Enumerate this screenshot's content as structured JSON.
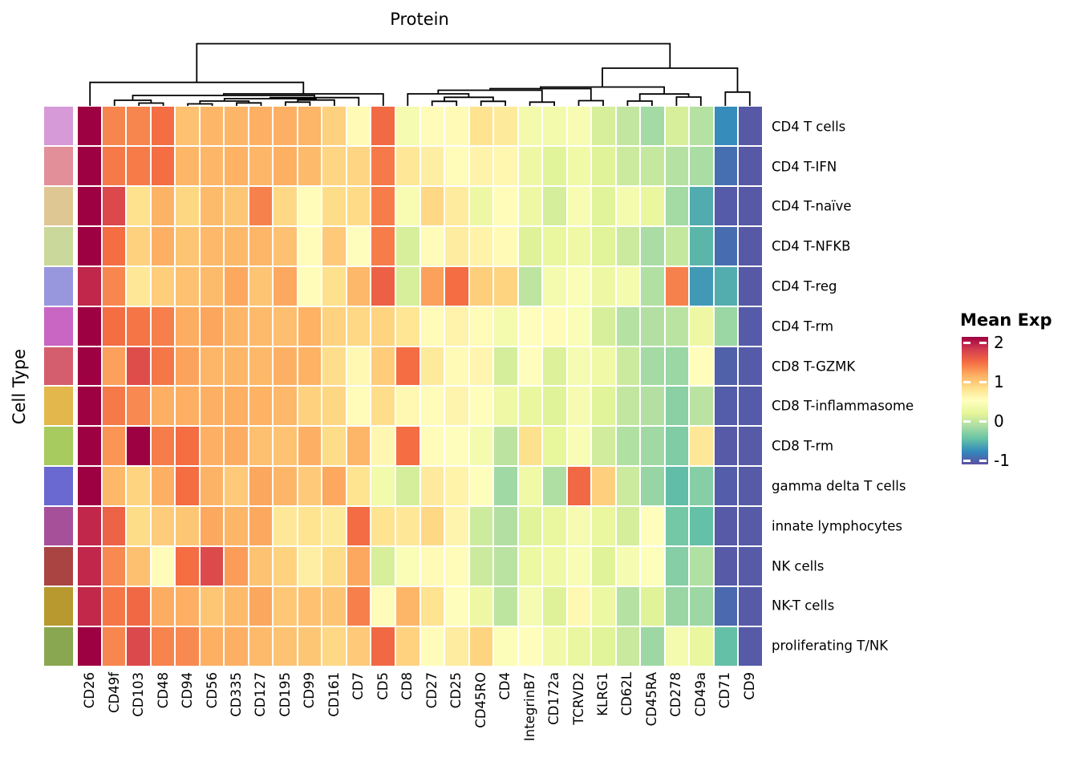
{
  "title": "Protein",
  "ylabel": "Cell Type",
  "legend": {
    "title": "Mean Exp",
    "vmin": -1.1,
    "vmax": 2.15,
    "ticks": [
      {
        "value": 2,
        "label": "2"
      },
      {
        "value": 1,
        "label": "1"
      },
      {
        "value": 0,
        "label": "0"
      },
      {
        "value": -1,
        "label": "-1"
      }
    ],
    "colormap": [
      [
        0.0,
        "#5e4fa2"
      ],
      [
        0.1,
        "#3288bd"
      ],
      [
        0.2,
        "#66c2a5"
      ],
      [
        0.3,
        "#abdda4"
      ],
      [
        0.4,
        "#e6f598"
      ],
      [
        0.5,
        "#ffffbf"
      ],
      [
        0.6,
        "#fee08b"
      ],
      [
        0.7,
        "#fdae61"
      ],
      [
        0.8,
        "#f46d43"
      ],
      [
        0.9,
        "#d53e4f"
      ],
      [
        1.0,
        "#9e0142"
      ]
    ]
  },
  "chart_data": {
    "type": "heatmap",
    "columns": [
      "CD26",
      "CD49f",
      "CD103",
      "CD48",
      "CD94",
      "CD56",
      "CD335",
      "CD127",
      "CD195",
      "CD99",
      "CD161",
      "CD7",
      "CD5",
      "CD8",
      "CD27",
      "CD25",
      "CD45RO",
      "CD4",
      "IntegrinB7",
      "CD172a",
      "TCRVD2",
      "KLRG1",
      "CD62L",
      "CD45RA",
      "CD278",
      "CD49a",
      "CD71",
      "CD9"
    ],
    "rows": [
      "CD4 T cells",
      "CD4 T-IFN",
      "CD4 T-naïve",
      "CD4 T-NFKB",
      "CD4 T-reg",
      "CD4 T-rm",
      "CD8 T-GZMK",
      "CD8 T-inflammasome",
      "CD8 T-rm",
      "gamma delta T cells",
      "innate lymphocytes",
      "NK cells",
      "NK-T cells",
      "proliferating T/NK"
    ],
    "row_colors": [
      "#d69ad8",
      "#e28f99",
      "#dfc794",
      "#cbd89b",
      "#9897dd",
      "#c965c3",
      "#d45e6e",
      "#e3b74b",
      "#a7cb5e",
      "#6969d1",
      "#a7509a",
      "#a94443",
      "#b7992f",
      "#89a750"
    ],
    "matrix": [
      [
        2.15,
        1.38,
        1.38,
        1.5,
        1.05,
        1.12,
        1.12,
        1.16,
        1.16,
        1.13,
        0.95,
        0.58,
        1.52,
        0.4,
        0.57,
        0.58,
        0.82,
        0.75,
        0.37,
        0.37,
        0.42,
        0.12,
        0,
        -0.16,
        0.12,
        -0.07,
        -0.75,
        -1.05
      ],
      [
        2.15,
        1.44,
        1.43,
        1.5,
        1.12,
        1.12,
        1.15,
        1.12,
        1.17,
        1.1,
        0.92,
        0.92,
        1.44,
        0.78,
        0.7,
        0.57,
        0.65,
        0.62,
        0.3,
        0.18,
        0.32,
        0.17,
        0.05,
        0.02,
        -0.07,
        -0.13,
        -0.92,
        -1.05
      ],
      [
        2.15,
        1.75,
        0.83,
        1.14,
        0.91,
        1.1,
        1.02,
        1.4,
        0.9,
        0.57,
        0.87,
        0.88,
        1.42,
        0.42,
        0.9,
        0.73,
        0.3,
        0.56,
        0.3,
        0.1,
        0.42,
        0.18,
        0.38,
        0.25,
        -0.16,
        -0.58,
        -1.03,
        -1.05
      ],
      [
        2.15,
        1.5,
        0.95,
        1.16,
        1.03,
        1.11,
        1.11,
        1.13,
        1.05,
        0.56,
        1.0,
        0.55,
        1.42,
        0.12,
        0.57,
        0.72,
        0.66,
        0.58,
        0.16,
        0.25,
        0.31,
        0.18,
        0.05,
        -0.13,
        0.02,
        -0.52,
        -0.93,
        -1.05
      ],
      [
        1.95,
        1.37,
        0.77,
        0.97,
        1.05,
        1.1,
        1.2,
        1.03,
        1.2,
        0.56,
        0.84,
        1.11,
        1.58,
        0.12,
        1.24,
        1.5,
        0.97,
        0.93,
        -0.02,
        0.38,
        0.45,
        0.3,
        0.38,
        -0.09,
        1.4,
        -0.68,
        -0.57,
        -1.05
      ],
      [
        2.15,
        1.5,
        1.46,
        1.41,
        1.18,
        1.22,
        1.12,
        1.1,
        1.07,
        1.15,
        0.94,
        0.9,
        0.93,
        0.79,
        0.57,
        0.65,
        0.57,
        0.38,
        0.55,
        0.56,
        0.45,
        0.12,
        -0.07,
        -0.08,
        -0.04,
        0.3,
        -0.2,
        -1.03
      ],
      [
        2.15,
        1.24,
        1.72,
        1.45,
        1.23,
        1.13,
        1.13,
        1.11,
        1.16,
        1.15,
        0.86,
        0.6,
        0.98,
        1.5,
        0.75,
        0.58,
        0.63,
        0.1,
        0.55,
        0.15,
        0.4,
        0.32,
        0.05,
        -0.16,
        -0.2,
        0.55,
        -1.0,
        -1.03
      ],
      [
        2.15,
        1.44,
        1.36,
        1.16,
        1.16,
        1.16,
        1.17,
        1.15,
        1.11,
        0.95,
        0.91,
        0.57,
        0.86,
        0.6,
        0.57,
        0.64,
        0.55,
        0.31,
        0.25,
        0.17,
        0.41,
        0.18,
        0,
        -0.08,
        -0.28,
        -0.04,
        -1.02,
        -1.03
      ],
      [
        2.15,
        1.3,
        2.2,
        1.42,
        1.5,
        1.16,
        1.18,
        1.06,
        1.04,
        1.16,
        0.87,
        1.13,
        0.61,
        1.5,
        0.56,
        0.55,
        0.38,
        -0.03,
        0.84,
        0.23,
        0.44,
        0.08,
        -0.09,
        -0.17,
        -0.33,
        0.78,
        -1.04,
        -1.04
      ],
      [
        2.15,
        1.11,
        0.93,
        1.16,
        1.5,
        1.14,
        1.0,
        1.21,
        1.12,
        1.0,
        1.2,
        0.82,
        0.36,
        0.1,
        0.74,
        0.66,
        0.55,
        -0.17,
        0.32,
        -0.1,
        1.53,
        0.96,
        0.05,
        -0.22,
        -0.48,
        -0.3,
        -1.02,
        -1.04
      ],
      [
        1.95,
        1.57,
        0.87,
        0.98,
        1.02,
        1.2,
        1.13,
        1.2,
        0.77,
        0.82,
        0.75,
        1.51,
        0.82,
        0.78,
        0.9,
        0.64,
        0.06,
        -0.08,
        0.18,
        0.26,
        0.41,
        0.25,
        0.1,
        0.55,
        -0.38,
        -0.46,
        -1.04,
        -1.04
      ],
      [
        1.95,
        1.36,
        1.06,
        0.57,
        1.5,
        1.74,
        1.26,
        1.04,
        0.94,
        0.7,
        0.87,
        1.2,
        0.12,
        0.45,
        0.58,
        0.57,
        0.05,
        -0.04,
        0.29,
        0.32,
        0.44,
        0.17,
        0.4,
        0.48,
        -0.3,
        -0.09,
        -1.04,
        -1.04
      ],
      [
        1.94,
        1.45,
        1.53,
        1.18,
        1.16,
        1.02,
        1.1,
        1.21,
        1.01,
        1.05,
        1.03,
        1.41,
        0.57,
        1.12,
        0.82,
        0.55,
        0.3,
        -0.02,
        0.4,
        0.16,
        0.6,
        0.29,
        -0.07,
        0.17,
        -0.21,
        -0.19,
        -0.95,
        -1.04
      ],
      [
        2.15,
        1.37,
        1.75,
        1.39,
        1.36,
        1.17,
        1.16,
        1.1,
        1.04,
        1.02,
        0.9,
        1.0,
        1.53,
        0.94,
        0.56,
        0.72,
        0.93,
        0.47,
        0.55,
        0.35,
        0.27,
        0.18,
        0.04,
        -0.19,
        0.38,
        0.25,
        -0.46,
        -1.04
      ]
    ],
    "col_dendrogram": [
      54.5,
      [
        102.7,
        0,
        [
          117,
          [
            119,
            [
              125,
              1,
              [
                128.5,
                2,
                3
              ]
            ],
            [
              121.7,
              [
                123,
                [
                  126,
                  [
                    129.5,
                    4,
                    5
                  ],
                  [
                    128.3,
                    6,
                    7
                  ]
                ],
                [
                  124.7,
                  [
                    127.3,
                    8,
                    9
                  ],
                  10
                ]
              ],
              11
            ]
          ],
          12
        ]
      ],
      [
        85,
        [
          108.5,
          [
            110.5,
            [
              112.5,
              [
                117,
                13,
                [
                  121.3,
                  [
                    126.3,
                    14,
                    15
                  ],
                  [
                    126.3,
                    16,
                    17
                  ]
                ]
              ],
              [
                127.3,
                18,
                19
              ]
            ],
            [
              125.5,
              20,
              21
            ]
          ],
          [
            117.2,
            [
              126,
              22,
              23
            ],
            [
              121,
              24,
              25
            ]
          ]
        ],
        [
          114.8,
          26,
          27
        ]
      ]
    ]
  }
}
